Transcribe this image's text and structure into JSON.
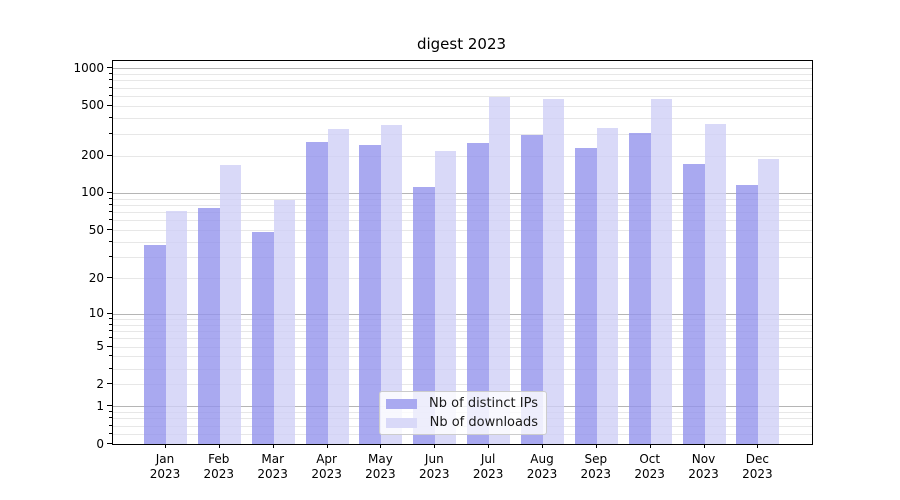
{
  "chart_data": {
    "type": "bar",
    "title": "digest 2023",
    "categories": [
      "Jan 2023",
      "Feb 2023",
      "Mar 2023",
      "Apr 2023",
      "May 2023",
      "Jun 2023",
      "Jul 2023",
      "Aug 2023",
      "Sep 2023",
      "Oct 2023",
      "Nov 2023",
      "Dec 2023"
    ],
    "series": [
      {
        "name": "Nb of distinct IPs",
        "color": "rgba(148,148,236,0.8)",
        "solid_color": "#a9a9f0",
        "values": [
          38,
          75,
          48,
          258,
          242,
          112,
          253,
          290,
          230,
          303,
          170,
          115
        ]
      },
      {
        "name": "Nb of downloads",
        "color": "rgba(208,208,246,0.8)",
        "solid_color": "#d9d9f8",
        "values": [
          72,
          167,
          88,
          328,
          353,
          216,
          585,
          570,
          332,
          562,
          355,
          186
        ]
      }
    ],
    "xlabel": "",
    "ylabel": "",
    "yscale": "log1p",
    "ylim": [
      0,
      1140
    ],
    "yticks": [
      0,
      1,
      2,
      5,
      10,
      20,
      50,
      100,
      200,
      500,
      1000
    ],
    "ytick_labels": [
      "0",
      "1",
      "2",
      "5",
      "10",
      "20",
      "50",
      "100",
      "200",
      "500",
      "1000"
    ],
    "grid": {
      "major_values": [
        1,
        10,
        100,
        1000
      ],
      "minor_values": [
        0.2,
        0.4,
        0.6,
        0.8,
        2,
        3,
        4,
        5,
        6,
        7,
        8,
        9,
        20,
        30,
        40,
        50,
        60,
        70,
        80,
        90,
        200,
        300,
        400,
        500,
        600,
        700,
        800,
        900
      ],
      "major_color": "#b5b5b5",
      "minor_color": "#e7e7e7"
    },
    "legend_position": "lower center",
    "axis_color": "#000000",
    "background_color": "#ffffff"
  },
  "legend": {
    "items": [
      {
        "label": "Nb of distinct IPs"
      },
      {
        "label": "Nb of downloads"
      }
    ]
  }
}
